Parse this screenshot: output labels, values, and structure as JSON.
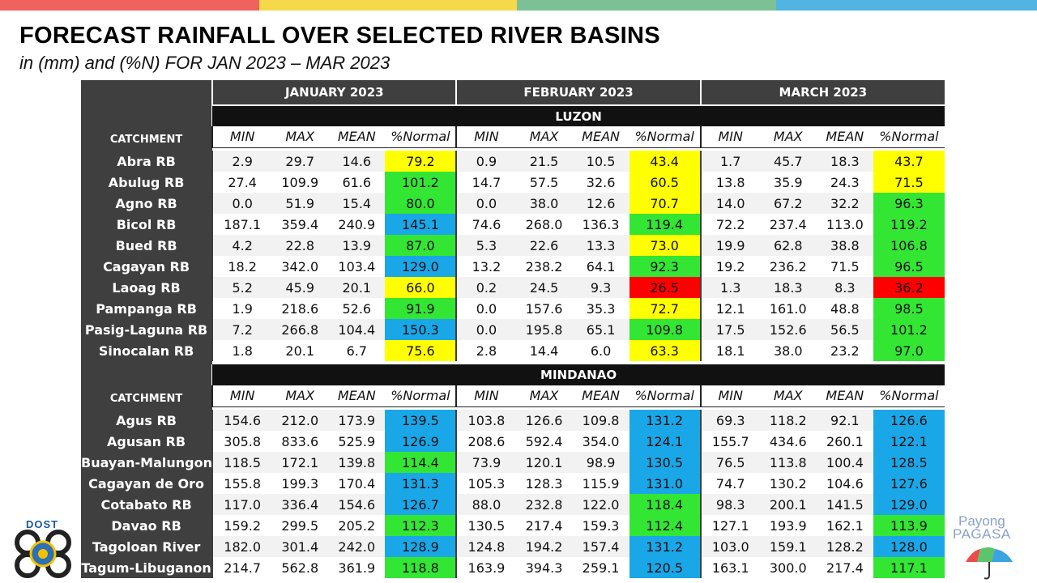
{
  "header": {
    "title": "FORECAST RAINFALL OVER SELECTED RIVER BASINS",
    "subtitle": "in (mm) and (%N) FOR JAN 2023 – MAR 2023"
  },
  "colors": {
    "stripe": [
      "#f0625e",
      "#f5d949",
      "#7cc196",
      "#53b3e2"
    ],
    "red": "#ff0000",
    "yellow": "#ffff00",
    "green": "#33e633",
    "blue": "#1aa7e8"
  },
  "table": {
    "months": [
      "JANUARY 2023",
      "FEBRUARY 2023",
      "MARCH 2023"
    ],
    "catchment_label": "CATCHMENT",
    "col_labels": [
      "MIN",
      "MAX",
      "MEAN",
      "%Normal"
    ],
    "regions": [
      {
        "name": "LUZON",
        "rows": [
          {
            "name": "Abra RB",
            "values": [
              [
                "2.9",
                "29.7",
                "14.6",
                "79.2"
              ],
              [
                "0.9",
                "21.5",
                "10.5",
                "43.4"
              ],
              [
                "1.7",
                "45.7",
                "18.3",
                "43.7"
              ]
            ],
            "cats": [
              "yellow",
              "yellow",
              "yellow"
            ]
          },
          {
            "name": "Abulug RB",
            "values": [
              [
                "27.4",
                "109.9",
                "61.6",
                "101.2"
              ],
              [
                "14.7",
                "57.5",
                "32.6",
                "60.5"
              ],
              [
                "13.8",
                "35.9",
                "24.3",
                "71.5"
              ]
            ],
            "cats": [
              "green",
              "yellow",
              "yellow"
            ]
          },
          {
            "name": "Agno RB",
            "values": [
              [
                "0.0",
                "51.9",
                "15.4",
                "80.0"
              ],
              [
                "0.0",
                "38.0",
                "12.6",
                "70.7"
              ],
              [
                "14.0",
                "67.2",
                "32.2",
                "96.3"
              ]
            ],
            "cats": [
              "green",
              "yellow",
              "green"
            ]
          },
          {
            "name": "Bicol RB",
            "values": [
              [
                "187.1",
                "359.4",
                "240.9",
                "145.1"
              ],
              [
                "74.6",
                "268.0",
                "136.3",
                "119.4"
              ],
              [
                "72.2",
                "237.4",
                "113.0",
                "119.2"
              ]
            ],
            "cats": [
              "blue",
              "green",
              "green"
            ]
          },
          {
            "name": "Bued RB",
            "values": [
              [
                "4.2",
                "22.8",
                "13.9",
                "87.0"
              ],
              [
                "5.3",
                "22.6",
                "13.3",
                "73.0"
              ],
              [
                "19.9",
                "62.8",
                "38.8",
                "106.8"
              ]
            ],
            "cats": [
              "green",
              "yellow",
              "green"
            ]
          },
          {
            "name": "Cagayan RB",
            "values": [
              [
                "18.2",
                "342.0",
                "103.4",
                "129.0"
              ],
              [
                "13.2",
                "238.2",
                "64.1",
                "92.3"
              ],
              [
                "19.2",
                "236.2",
                "71.5",
                "96.5"
              ]
            ],
            "cats": [
              "blue",
              "green",
              "green"
            ]
          },
          {
            "name": "Laoag RB",
            "values": [
              [
                "5.2",
                "45.9",
                "20.1",
                "66.0"
              ],
              [
                "0.2",
                "24.5",
                "9.3",
                "26.5"
              ],
              [
                "1.3",
                "18.3",
                "8.3",
                "36.2"
              ]
            ],
            "cats": [
              "yellow",
              "red",
              "red"
            ]
          },
          {
            "name": "Pampanga RB",
            "values": [
              [
                "1.9",
                "218.6",
                "52.6",
                "91.9"
              ],
              [
                "0.0",
                "157.6",
                "35.3",
                "72.7"
              ],
              [
                "12.1",
                "161.0",
                "48.8",
                "98.5"
              ]
            ],
            "cats": [
              "green",
              "yellow",
              "green"
            ]
          },
          {
            "name": "Pasig-Laguna RB",
            "values": [
              [
                "7.2",
                "266.8",
                "104.4",
                "150.3"
              ],
              [
                "0.0",
                "195.8",
                "65.1",
                "109.8"
              ],
              [
                "17.5",
                "152.6",
                "56.5",
                "101.2"
              ]
            ],
            "cats": [
              "blue",
              "green",
              "green"
            ]
          },
          {
            "name": "Sinocalan RB",
            "values": [
              [
                "1.8",
                "20.1",
                "6.7",
                "75.6"
              ],
              [
                "2.8",
                "14.4",
                "6.0",
                "63.3"
              ],
              [
                "18.1",
                "38.0",
                "23.2",
                "97.0"
              ]
            ],
            "cats": [
              "yellow",
              "yellow",
              "green"
            ]
          }
        ]
      },
      {
        "name": "MINDANAO",
        "rows": [
          {
            "name": "Agus RB",
            "values": [
              [
                "154.6",
                "212.0",
                "173.9",
                "139.5"
              ],
              [
                "103.8",
                "126.6",
                "109.8",
                "131.2"
              ],
              [
                "69.3",
                "118.2",
                "92.1",
                "126.6"
              ]
            ],
            "cats": [
              "blue",
              "blue",
              "blue"
            ]
          },
          {
            "name": "Agusan RB",
            "values": [
              [
                "305.8",
                "833.6",
                "525.9",
                "126.9"
              ],
              [
                "208.6",
                "592.4",
                "354.0",
                "124.1"
              ],
              [
                "155.7",
                "434.6",
                "260.1",
                "122.1"
              ]
            ],
            "cats": [
              "blue",
              "blue",
              "blue"
            ]
          },
          {
            "name": "Buayan-Malungon",
            "values": [
              [
                "118.5",
                "172.1",
                "139.8",
                "114.4"
              ],
              [
                "73.9",
                "120.1",
                "98.9",
                "130.5"
              ],
              [
                "76.5",
                "113.8",
                "100.4",
                "128.5"
              ]
            ],
            "cats": [
              "green",
              "blue",
              "blue"
            ]
          },
          {
            "name": "Cagayan de Oro",
            "values": [
              [
                "155.8",
                "199.3",
                "170.4",
                "131.3"
              ],
              [
                "105.3",
                "128.3",
                "115.9",
                "131.0"
              ],
              [
                "74.7",
                "130.2",
                "104.6",
                "127.6"
              ]
            ],
            "cats": [
              "blue",
              "blue",
              "blue"
            ]
          },
          {
            "name": "Cotabato RB",
            "values": [
              [
                "117.0",
                "336.4",
                "154.6",
                "126.7"
              ],
              [
                "88.0",
                "232.8",
                "122.0",
                "118.4"
              ],
              [
                "98.3",
                "200.1",
                "141.5",
                "129.0"
              ]
            ],
            "cats": [
              "blue",
              "green",
              "blue"
            ]
          },
          {
            "name": "Davao RB",
            "values": [
              [
                "159.2",
                "299.5",
                "205.2",
                "112.3"
              ],
              [
                "130.5",
                "217.4",
                "159.3",
                "112.4"
              ],
              [
                "127.1",
                "193.9",
                "162.1",
                "113.9"
              ]
            ],
            "cats": [
              "green",
              "green",
              "green"
            ]
          },
          {
            "name": "Tagoloan River",
            "values": [
              [
                "182.0",
                "301.4",
                "242.0",
                "128.9"
              ],
              [
                "124.8",
                "194.2",
                "157.4",
                "131.2"
              ],
              [
                "103.0",
                "159.1",
                "128.2",
                "128.0"
              ]
            ],
            "cats": [
              "blue",
              "blue",
              "blue"
            ]
          },
          {
            "name": "Tagum-Libuganon",
            "values": [
              [
                "214.7",
                "562.8",
                "361.9",
                "118.8"
              ],
              [
                "163.9",
                "394.3",
                "259.1",
                "120.5"
              ],
              [
                "163.1",
                "300.0",
                "217.4",
                "117.1"
              ]
            ],
            "cats": [
              "green",
              "blue",
              "green"
            ]
          }
        ]
      }
    ]
  },
  "logos": {
    "dost_label": "DOST",
    "payong_line1": "Payong",
    "payong_line2": "PAGASA"
  }
}
